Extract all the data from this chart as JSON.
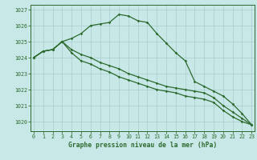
{
  "x": [
    0,
    1,
    2,
    3,
    4,
    5,
    6,
    7,
    8,
    9,
    10,
    11,
    12,
    13,
    14,
    15,
    16,
    17,
    18,
    19,
    20,
    21,
    22,
    23
  ],
  "line1": [
    1024.0,
    1024.4,
    1024.5,
    1025.0,
    1025.2,
    1025.5,
    1026.0,
    1026.1,
    1026.2,
    1026.7,
    1026.6,
    1026.3,
    1026.2,
    1025.5,
    1024.9,
    1024.3,
    1023.8,
    1022.5,
    1022.2,
    1021.9,
    1021.6,
    1021.1,
    1020.5,
    1019.8
  ],
  "line2": [
    1024.0,
    1024.4,
    1024.5,
    1025.0,
    1024.3,
    1023.8,
    1023.6,
    1023.3,
    1023.1,
    1022.8,
    1022.6,
    1022.4,
    1022.2,
    1022.0,
    1021.9,
    1021.8,
    1021.6,
    1021.5,
    1021.4,
    1021.2,
    1020.7,
    1020.3,
    1020.0,
    1019.8
  ],
  "line3": [
    1024.0,
    1024.4,
    1024.5,
    1025.0,
    1024.5,
    1024.2,
    1024.0,
    1023.7,
    1023.5,
    1023.3,
    1023.0,
    1022.8,
    1022.6,
    1022.4,
    1022.2,
    1022.1,
    1022.0,
    1021.9,
    1021.8,
    1021.5,
    1021.0,
    1020.6,
    1020.2,
    1019.8
  ],
  "line_color": "#2d6a2d",
  "bg_color": "#c8e8e8",
  "grid_color": "#a8cccc",
  "ylim_min": 1019.4,
  "ylim_max": 1027.3,
  "yticks": [
    1020,
    1021,
    1022,
    1023,
    1024,
    1025,
    1026,
    1027
  ],
  "xlabel": "Graphe pression niveau de la mer (hPa)",
  "marker": "D",
  "marker_size": 1.8,
  "linewidth": 0.9,
  "tick_fontsize": 4.8,
  "xlabel_fontsize": 5.8
}
